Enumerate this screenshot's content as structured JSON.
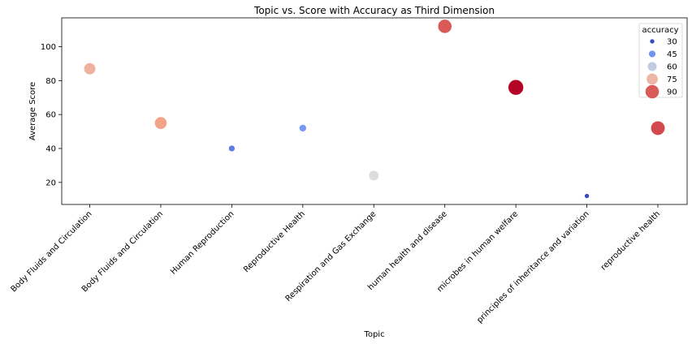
{
  "chart_data": {
    "type": "scatter",
    "title": "Topic vs. Score with Accuracy as Third Dimension",
    "xlabel": "Topic",
    "ylabel": "Average Score",
    "ylim": [
      7,
      117
    ],
    "yticks": [
      20,
      40,
      60,
      80,
      100
    ],
    "grid": false,
    "legend": {
      "title": "accuracy",
      "placement": "top-right",
      "entries": [
        {
          "label": "30",
          "value": 30
        },
        {
          "label": "45",
          "value": 45
        },
        {
          "label": "60",
          "value": 60
        },
        {
          "label": "75",
          "value": 75
        },
        {
          "label": "90",
          "value": 90
        }
      ]
    },
    "categories": [
      "Body Fluids and Circulation",
      "Body Fluids and Circulation ",
      "Human Reproduction",
      "Reproductive Health",
      "Respiration and Gas Exchange",
      "human health and disease",
      "microbes in human welfare",
      "principles of inheritance and variation",
      "reproductive health"
    ],
    "points": [
      {
        "x": "Body Fluids and Circulation",
        "y": 87,
        "accuracy": 76
      },
      {
        "x": "Body Fluids and Circulation ",
        "y": 55,
        "accuracy": 80
      },
      {
        "x": "Human Reproduction",
        "y": 40,
        "accuracy": 40
      },
      {
        "x": "Reproductive Health",
        "y": 52,
        "accuracy": 46
      },
      {
        "x": "Respiration and Gas Exchange",
        "y": 24,
        "accuracy": 65
      },
      {
        "x": "human health and disease",
        "y": 112,
        "accuracy": 90
      },
      {
        "x": "microbes in human welfare",
        "y": 76,
        "accuracy": 100
      },
      {
        "x": "principles of inheritance and variation",
        "y": 12,
        "accuracy": 30
      },
      {
        "x": "reproductive health",
        "y": 52,
        "accuracy": 92
      }
    ],
    "colormap": "coolwarm",
    "accuracy_range": [
      30,
      100
    ]
  }
}
